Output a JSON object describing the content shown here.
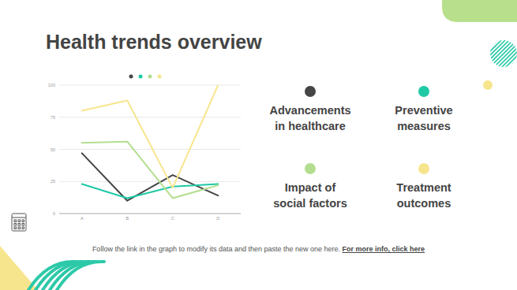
{
  "slide": {
    "title": "Health trends overview",
    "footer_text": "Follow the link in the graph to modify its data and then paste the new one here.",
    "footer_link": "For more info, click here"
  },
  "chart_data": {
    "type": "line",
    "categories": [
      "A",
      "B",
      "C",
      "D"
    ],
    "series": [
      {
        "name": "Advancements in healthcare",
        "color": "#454545",
        "values": [
          47,
          10,
          30,
          14
        ]
      },
      {
        "name": "Preventive measures",
        "color": "#1fc9a6",
        "values": [
          23,
          12,
          21,
          23
        ]
      },
      {
        "name": "Impact of social factors",
        "color": "#b3de90",
        "values": [
          55,
          56,
          12,
          22
        ]
      },
      {
        "name": "Treatment outcomes",
        "color": "#f7e58e",
        "values": [
          80,
          88,
          20,
          100
        ]
      }
    ],
    "ylim": [
      0,
      100
    ],
    "yticks": [
      0,
      25,
      50,
      75,
      100
    ],
    "grid": true,
    "legend": "right"
  }
}
